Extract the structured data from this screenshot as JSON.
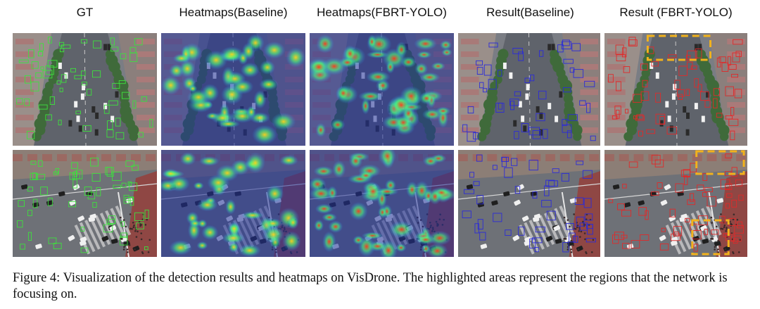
{
  "figure": {
    "columns": [
      {
        "label": "GT"
      },
      {
        "label": "Heatmaps(Baseline)"
      },
      {
        "label": "Heatmaps(FBRT-YOLO)"
      },
      {
        "label": "Result(Baseline)"
      },
      {
        "label": "Result (FBRT-YOLO)"
      }
    ],
    "caption": "Figure 4: Visualization of the detection results and heatmaps on VisDrone. The highlighted areas represent the regions that the network is focusing on."
  },
  "colors": {
    "gt_box": "#3ee03e",
    "baseline_box": "#2b2bd8",
    "fbrt_box": "#e02a2a",
    "highlight": "#f2b21c",
    "heat_bg": "#2436a8"
  }
}
